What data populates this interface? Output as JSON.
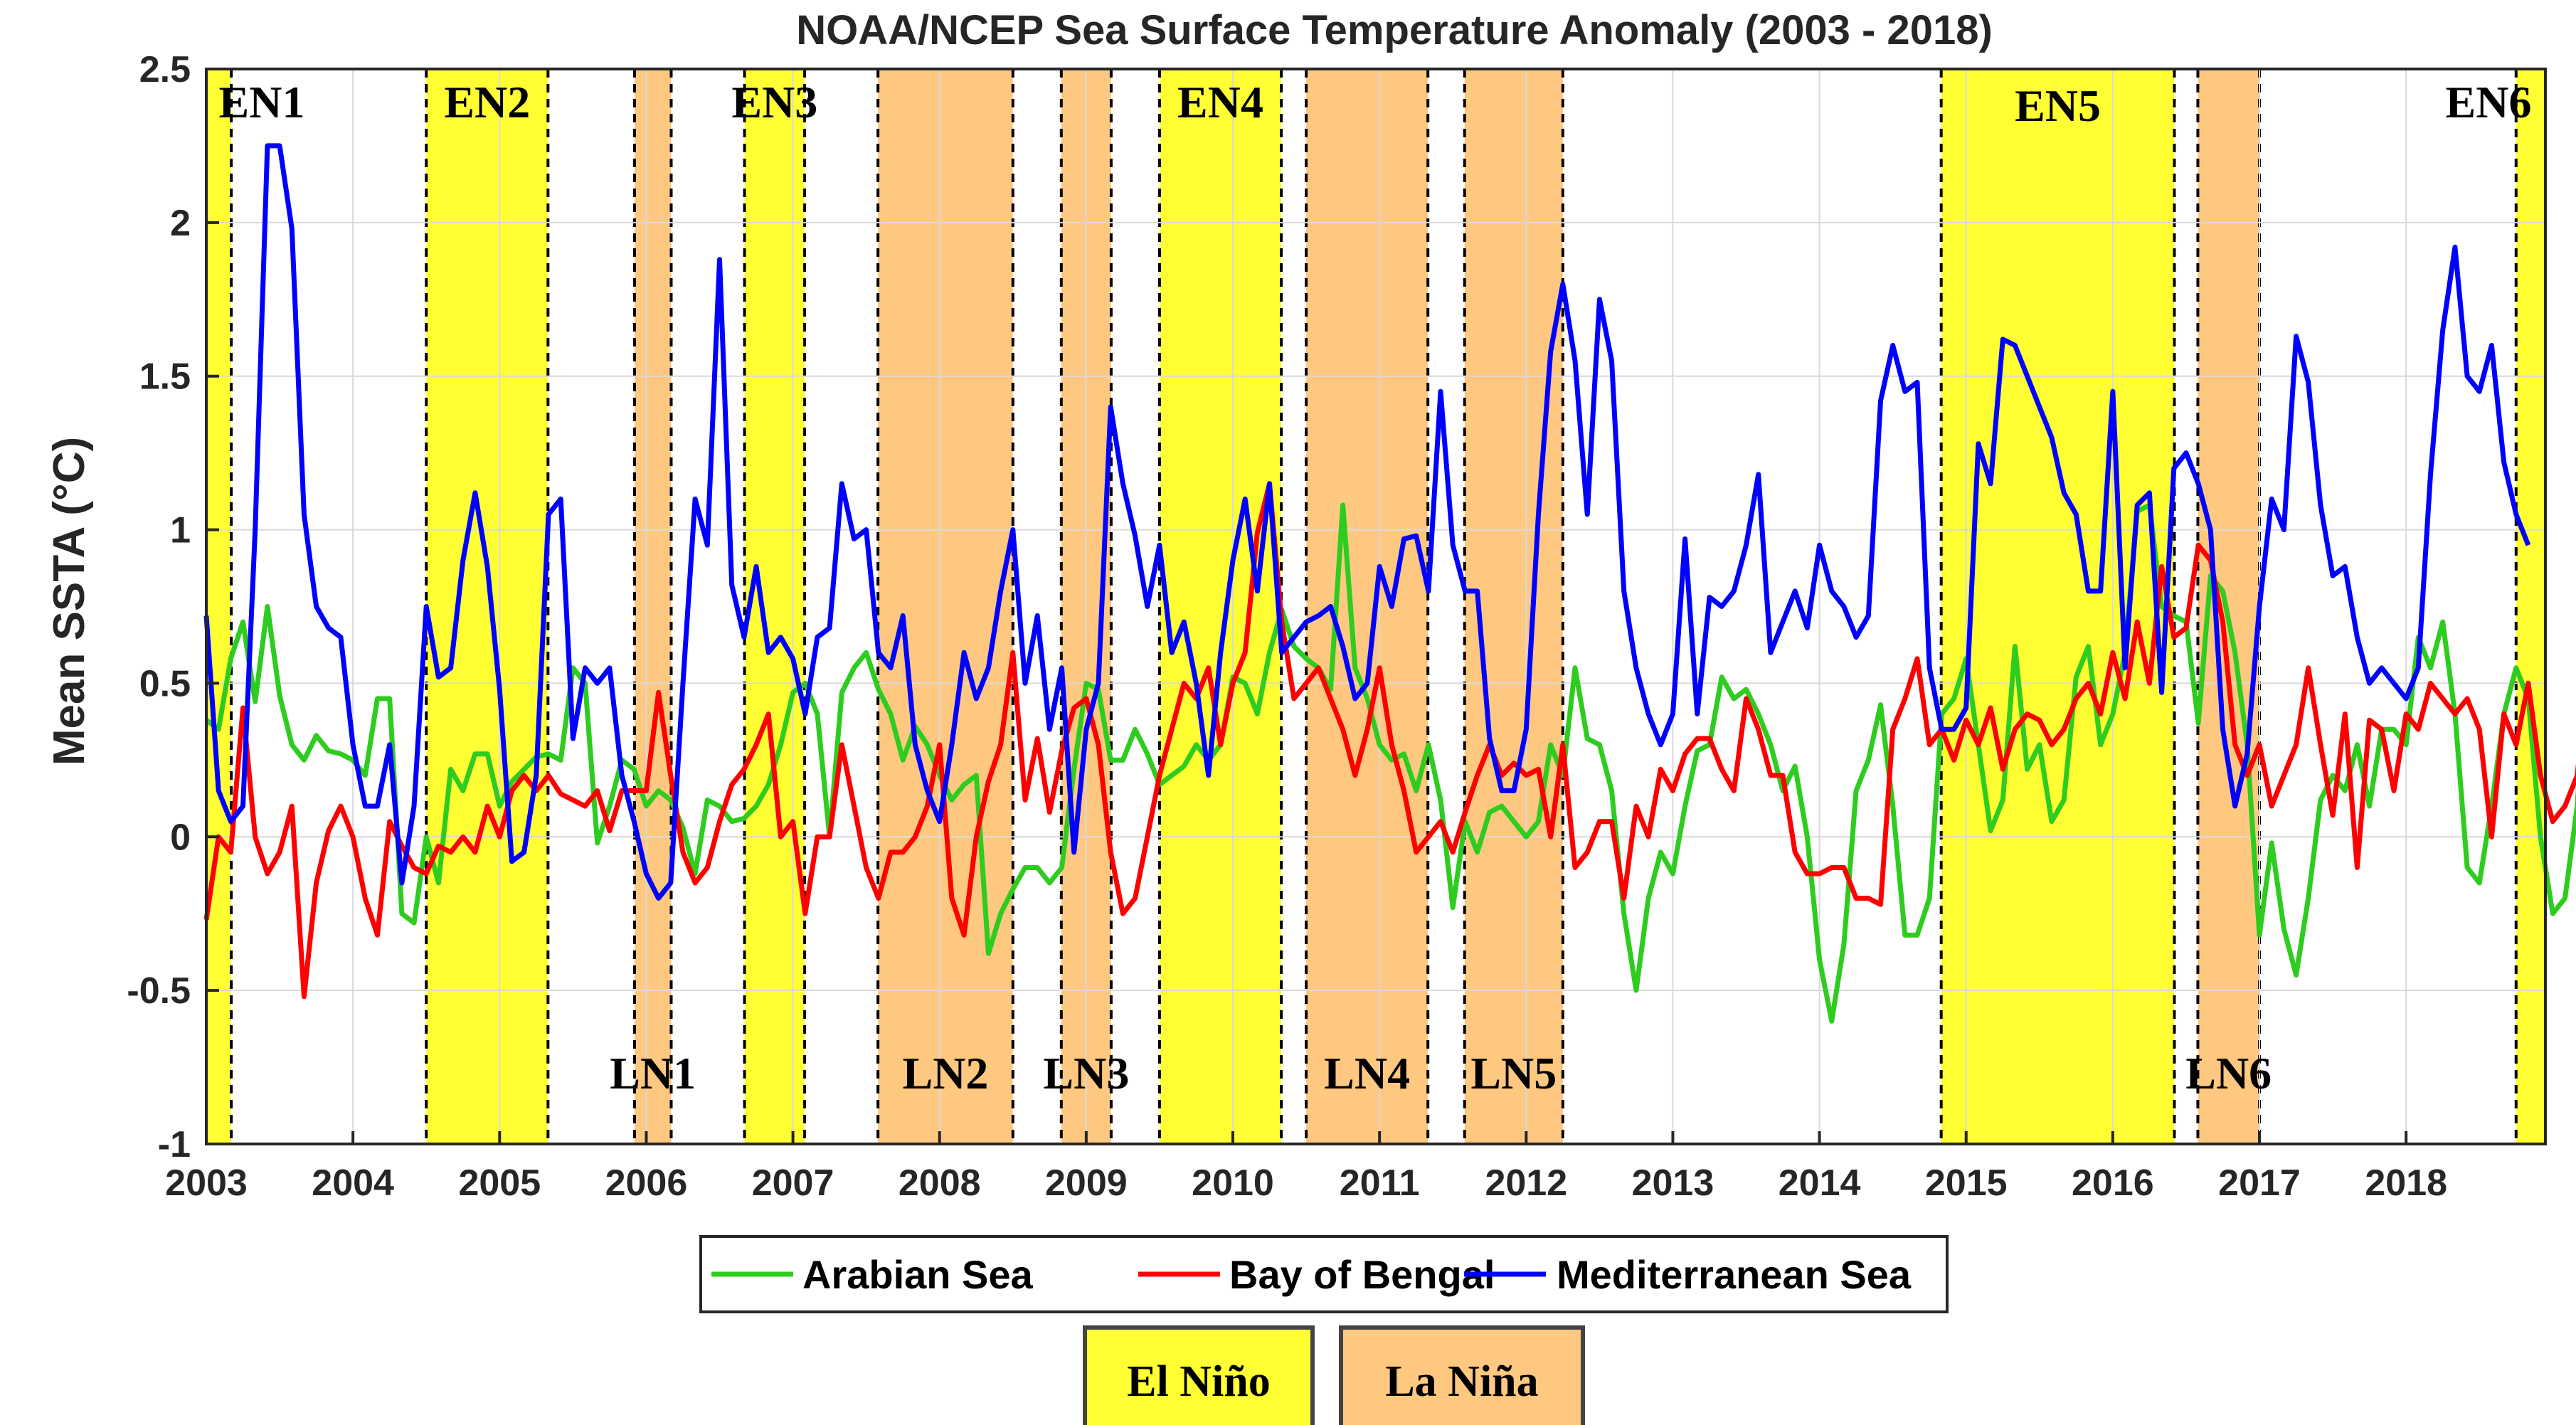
{
  "chart_data": {
    "type": "line",
    "title": "NOAA/NCEP Sea Surface Temperature Anomaly (2003 - 2018)",
    "xlabel": "",
    "ylabel": "Mean SSTA (°C)",
    "xlim": [
      2003.0,
      2018.95
    ],
    "ylim": [
      -1,
      2.5
    ],
    "x_ticks": [
      "2003",
      "2004",
      "2005",
      "2006",
      "2007",
      "2008",
      "2009",
      "2010",
      "2011",
      "2012",
      "2013",
      "2014",
      "2015",
      "2016",
      "2017",
      "2018"
    ],
    "y_ticks": [
      "-1",
      "-0.5",
      "0",
      "0.5",
      "1",
      "1.5",
      "2",
      "2.5"
    ],
    "grid": true,
    "legend": {
      "placement": "bottom",
      "entries": [
        {
          "name": "Arabian Sea",
          "color": "#2ecc1f"
        },
        {
          "name": "Bay of Bengal",
          "color": "#ff0000"
        },
        {
          "name": "Mediterranean Sea",
          "color": "#0000ff"
        }
      ]
    },
    "shading_legend": [
      {
        "label": "El Niño",
        "color": "#ffff33"
      },
      {
        "label": "La Niña",
        "color": "#ffc880"
      }
    ],
    "events": [
      {
        "label": "EN1",
        "kind": "El Niño",
        "start": 2003.0,
        "end": 2003.17
      },
      {
        "label": "EN2",
        "kind": "El Niño",
        "start": 2004.5,
        "end": 2005.33
      },
      {
        "label": "LN1",
        "kind": "La Niña",
        "start": 2005.92,
        "end": 2006.17
      },
      {
        "label": "EN3",
        "kind": "El Niño",
        "start": 2006.67,
        "end": 2007.08
      },
      {
        "label": "LN2",
        "kind": "La Niña",
        "start": 2007.58,
        "end": 2008.5
      },
      {
        "label": "LN3",
        "kind": "La Niña",
        "start": 2008.83,
        "end": 2009.17
      },
      {
        "label": "EN4",
        "kind": "El Niño",
        "start": 2009.5,
        "end": 2010.33
      },
      {
        "label": "LN4",
        "kind": "La Niña",
        "start": 2010.5,
        "end": 2011.33
      },
      {
        "label": "LN5",
        "kind": "La Niña",
        "start": 2011.58,
        "end": 2012.25
      },
      {
        "label": "EN5",
        "kind": "El Niño",
        "start": 2014.83,
        "end": 2016.42
      },
      {
        "label": "LN6",
        "kind": "La Niña",
        "start": 2016.58,
        "end": 2017.0
      },
      {
        "label": "EN6",
        "kind": "El Niño",
        "start": 2018.75,
        "end": 2018.95
      }
    ],
    "series": [
      {
        "name": "Arabian Sea",
        "color": "#2ecc1f",
        "x_start": 2003.0,
        "x_step": 0.0833333,
        "values": [
          0.38,
          0.35,
          0.58,
          0.7,
          0.44,
          0.75,
          0.46,
          0.3,
          0.25,
          0.33,
          0.28,
          0.27,
          0.25,
          0.2,
          0.45,
          0.45,
          -0.25,
          -0.28,
          0.0,
          -0.15,
          0.22,
          0.15,
          0.27,
          0.27,
          0.1,
          0.18,
          0.22,
          0.26,
          0.27,
          0.25,
          0.55,
          0.5,
          -0.02,
          0.1,
          0.25,
          0.22,
          0.1,
          0.15,
          0.12,
          0.03,
          -0.12,
          0.12,
          0.1,
          0.05,
          0.06,
          0.1,
          0.17,
          0.3,
          0.47,
          0.5,
          0.4,
          0.0,
          0.47,
          0.55,
          0.6,
          0.48,
          0.4,
          0.25,
          0.36,
          0.3,
          0.2,
          0.12,
          0.17,
          0.2,
          -0.38,
          -0.25,
          -0.17,
          -0.1,
          -0.1,
          -0.15,
          -0.1,
          0.22,
          0.5,
          0.48,
          0.25,
          0.25,
          0.35,
          0.27,
          0.17,
          0.2,
          0.23,
          0.3,
          0.25,
          0.3,
          0.52,
          0.5,
          0.4,
          0.6,
          0.74,
          0.62,
          0.58,
          0.55,
          0.48,
          1.08,
          0.55,
          0.45,
          0.3,
          0.25,
          0.27,
          0.15,
          0.3,
          0.12,
          -0.23,
          0.05,
          -0.05,
          0.08,
          0.1,
          0.05,
          0.0,
          0.05,
          0.3,
          0.2,
          0.55,
          0.32,
          0.3,
          0.15,
          -0.25,
          -0.5,
          -0.2,
          -0.05,
          -0.12,
          0.1,
          0.28,
          0.3,
          0.52,
          0.45,
          0.48,
          0.4,
          0.3,
          0.15,
          0.23,
          0.0,
          -0.4,
          -0.6,
          -0.35,
          0.15,
          0.25,
          0.43,
          0.1,
          -0.32,
          -0.32,
          -0.2,
          0.4,
          0.45,
          0.58,
          0.3,
          0.02,
          0.12,
          0.62,
          0.22,
          0.3,
          0.05,
          0.12,
          0.52,
          0.62,
          0.3,
          0.4,
          0.6,
          1.06,
          1.08,
          0.75,
          0.72,
          0.7,
          0.37,
          0.85,
          0.8,
          0.6,
          0.3,
          -0.32,
          -0.02,
          -0.3,
          -0.45,
          -0.2,
          0.12,
          0.2,
          0.15,
          0.3,
          0.1,
          0.35,
          0.35,
          0.3,
          0.65,
          0.55,
          0.7,
          0.4,
          -0.1,
          -0.15,
          0.1,
          0.4,
          0.55,
          0.45,
          0.0,
          -0.25,
          -0.2,
          0.1,
          0.68,
          0.6
        ]
      },
      {
        "name": "Bay of Bengal",
        "color": "#ff0000",
        "x_start": 2003.0,
        "x_step": 0.0833333,
        "values": [
          -0.27,
          0.0,
          -0.05,
          0.42,
          0.0,
          -0.12,
          -0.05,
          0.1,
          -0.52,
          -0.15,
          0.02,
          0.1,
          0.0,
          -0.2,
          -0.32,
          0.05,
          -0.03,
          -0.1,
          -0.12,
          -0.03,
          -0.05,
          0.0,
          -0.05,
          0.1,
          0.0,
          0.15,
          0.2,
          0.15,
          0.2,
          0.14,
          0.12,
          0.1,
          0.15,
          0.02,
          0.15,
          0.15,
          0.15,
          0.47,
          0.2,
          -0.05,
          -0.15,
          -0.1,
          0.05,
          0.17,
          0.22,
          0.3,
          0.4,
          0.0,
          0.05,
          -0.25,
          0.0,
          0.0,
          0.3,
          0.1,
          -0.1,
          -0.2,
          -0.05,
          -0.05,
          0.0,
          0.1,
          0.3,
          -0.2,
          -0.32,
          0.0,
          0.18,
          0.3,
          0.6,
          0.12,
          0.32,
          0.08,
          0.28,
          0.42,
          0.45,
          0.3,
          -0.05,
          -0.25,
          -0.2,
          0.0,
          0.2,
          0.35,
          0.5,
          0.45,
          0.55,
          0.3,
          0.5,
          0.6,
          0.99,
          1.15,
          0.7,
          0.45,
          0.5,
          0.55,
          0.45,
          0.35,
          0.2,
          0.35,
          0.55,
          0.3,
          0.15,
          -0.05,
          0.0,
          0.05,
          -0.05,
          0.08,
          0.2,
          0.3,
          0.2,
          0.24,
          0.2,
          0.22,
          0.0,
          0.3,
          -0.1,
          -0.05,
          0.05,
          0.05,
          -0.2,
          0.1,
          0.0,
          0.22,
          0.15,
          0.27,
          0.32,
          0.32,
          0.22,
          0.15,
          0.45,
          0.35,
          0.2,
          0.2,
          -0.05,
          -0.12,
          -0.12,
          -0.1,
          -0.1,
          -0.2,
          -0.2,
          -0.22,
          0.35,
          0.45,
          0.58,
          0.3,
          0.35,
          0.25,
          0.38,
          0.3,
          0.42,
          0.22,
          0.35,
          0.4,
          0.38,
          0.3,
          0.35,
          0.45,
          0.5,
          0.4,
          0.6,
          0.45,
          0.7,
          0.5,
          0.88,
          0.65,
          0.68,
          0.95,
          0.9,
          0.7,
          0.3,
          0.2,
          0.3,
          0.1,
          0.2,
          0.3,
          0.55,
          0.3,
          0.07,
          0.4,
          -0.1,
          0.38,
          0.35,
          0.15,
          0.4,
          0.35,
          0.5,
          0.45,
          0.4,
          0.45,
          0.35,
          0.0,
          0.4,
          0.3,
          0.5,
          0.2,
          0.05,
          0.1,
          0.2,
          0.57,
          0.22,
          0.42
        ]
      },
      {
        "name": "Mediterranean Sea",
        "color": "#0000ff",
        "x_start": 2003.0,
        "x_step": 0.0833333,
        "values": [
          0.72,
          0.15,
          0.05,
          0.1,
          1.0,
          2.25,
          2.25,
          1.98,
          1.05,
          0.75,
          0.68,
          0.65,
          0.3,
          0.1,
          0.1,
          0.3,
          -0.15,
          0.1,
          0.75,
          0.52,
          0.55,
          0.9,
          1.12,
          0.88,
          0.48,
          -0.08,
          -0.05,
          0.2,
          1.05,
          1.1,
          0.32,
          0.55,
          0.5,
          0.55,
          0.2,
          0.05,
          -0.12,
          -0.2,
          -0.15,
          0.5,
          1.1,
          0.95,
          1.88,
          0.82,
          0.65,
          0.88,
          0.6,
          0.65,
          0.58,
          0.4,
          0.65,
          0.68,
          1.15,
          0.97,
          1.0,
          0.6,
          0.55,
          0.72,
          0.3,
          0.15,
          0.05,
          0.3,
          0.6,
          0.45,
          0.55,
          0.8,
          1.0,
          0.5,
          0.72,
          0.35,
          0.55,
          -0.05,
          0.35,
          0.5,
          1.4,
          1.15,
          0.98,
          0.75,
          0.95,
          0.6,
          0.7,
          0.5,
          0.2,
          0.6,
          0.9,
          1.1,
          0.8,
          1.15,
          0.6,
          0.65,
          0.7,
          0.72,
          0.75,
          0.62,
          0.45,
          0.5,
          0.88,
          0.75,
          0.97,
          0.98,
          0.8,
          1.45,
          0.95,
          0.8,
          0.8,
          0.32,
          0.15,
          0.15,
          0.35,
          1.05,
          1.58,
          1.8,
          1.55,
          1.05,
          1.75,
          1.55,
          0.8,
          0.55,
          0.4,
          0.3,
          0.4,
          0.97,
          0.4,
          0.78,
          0.75,
          0.8,
          0.95,
          1.18,
          0.6,
          0.7,
          0.8,
          0.68,
          0.95,
          0.8,
          0.75,
          0.65,
          0.72,
          1.42,
          1.6,
          1.45,
          1.48,
          0.55,
          0.35,
          0.35,
          0.42,
          1.28,
          1.15,
          1.62,
          1.6,
          1.5,
          1.4,
          1.3,
          1.12,
          1.05,
          0.8,
          0.8,
          1.45,
          0.55,
          1.08,
          1.12,
          0.47,
          1.2,
          1.25,
          1.15,
          1.0,
          0.35,
          0.1,
          0.27,
          0.75,
          1.1,
          1.0,
          1.63,
          1.48,
          1.08,
          0.85,
          0.88,
          0.65,
          0.5,
          0.55,
          0.5,
          0.45,
          0.55,
          1.18,
          1.65,
          1.92,
          1.5,
          1.45,
          1.6,
          1.22,
          1.05,
          0.95
        ]
      }
    ]
  }
}
